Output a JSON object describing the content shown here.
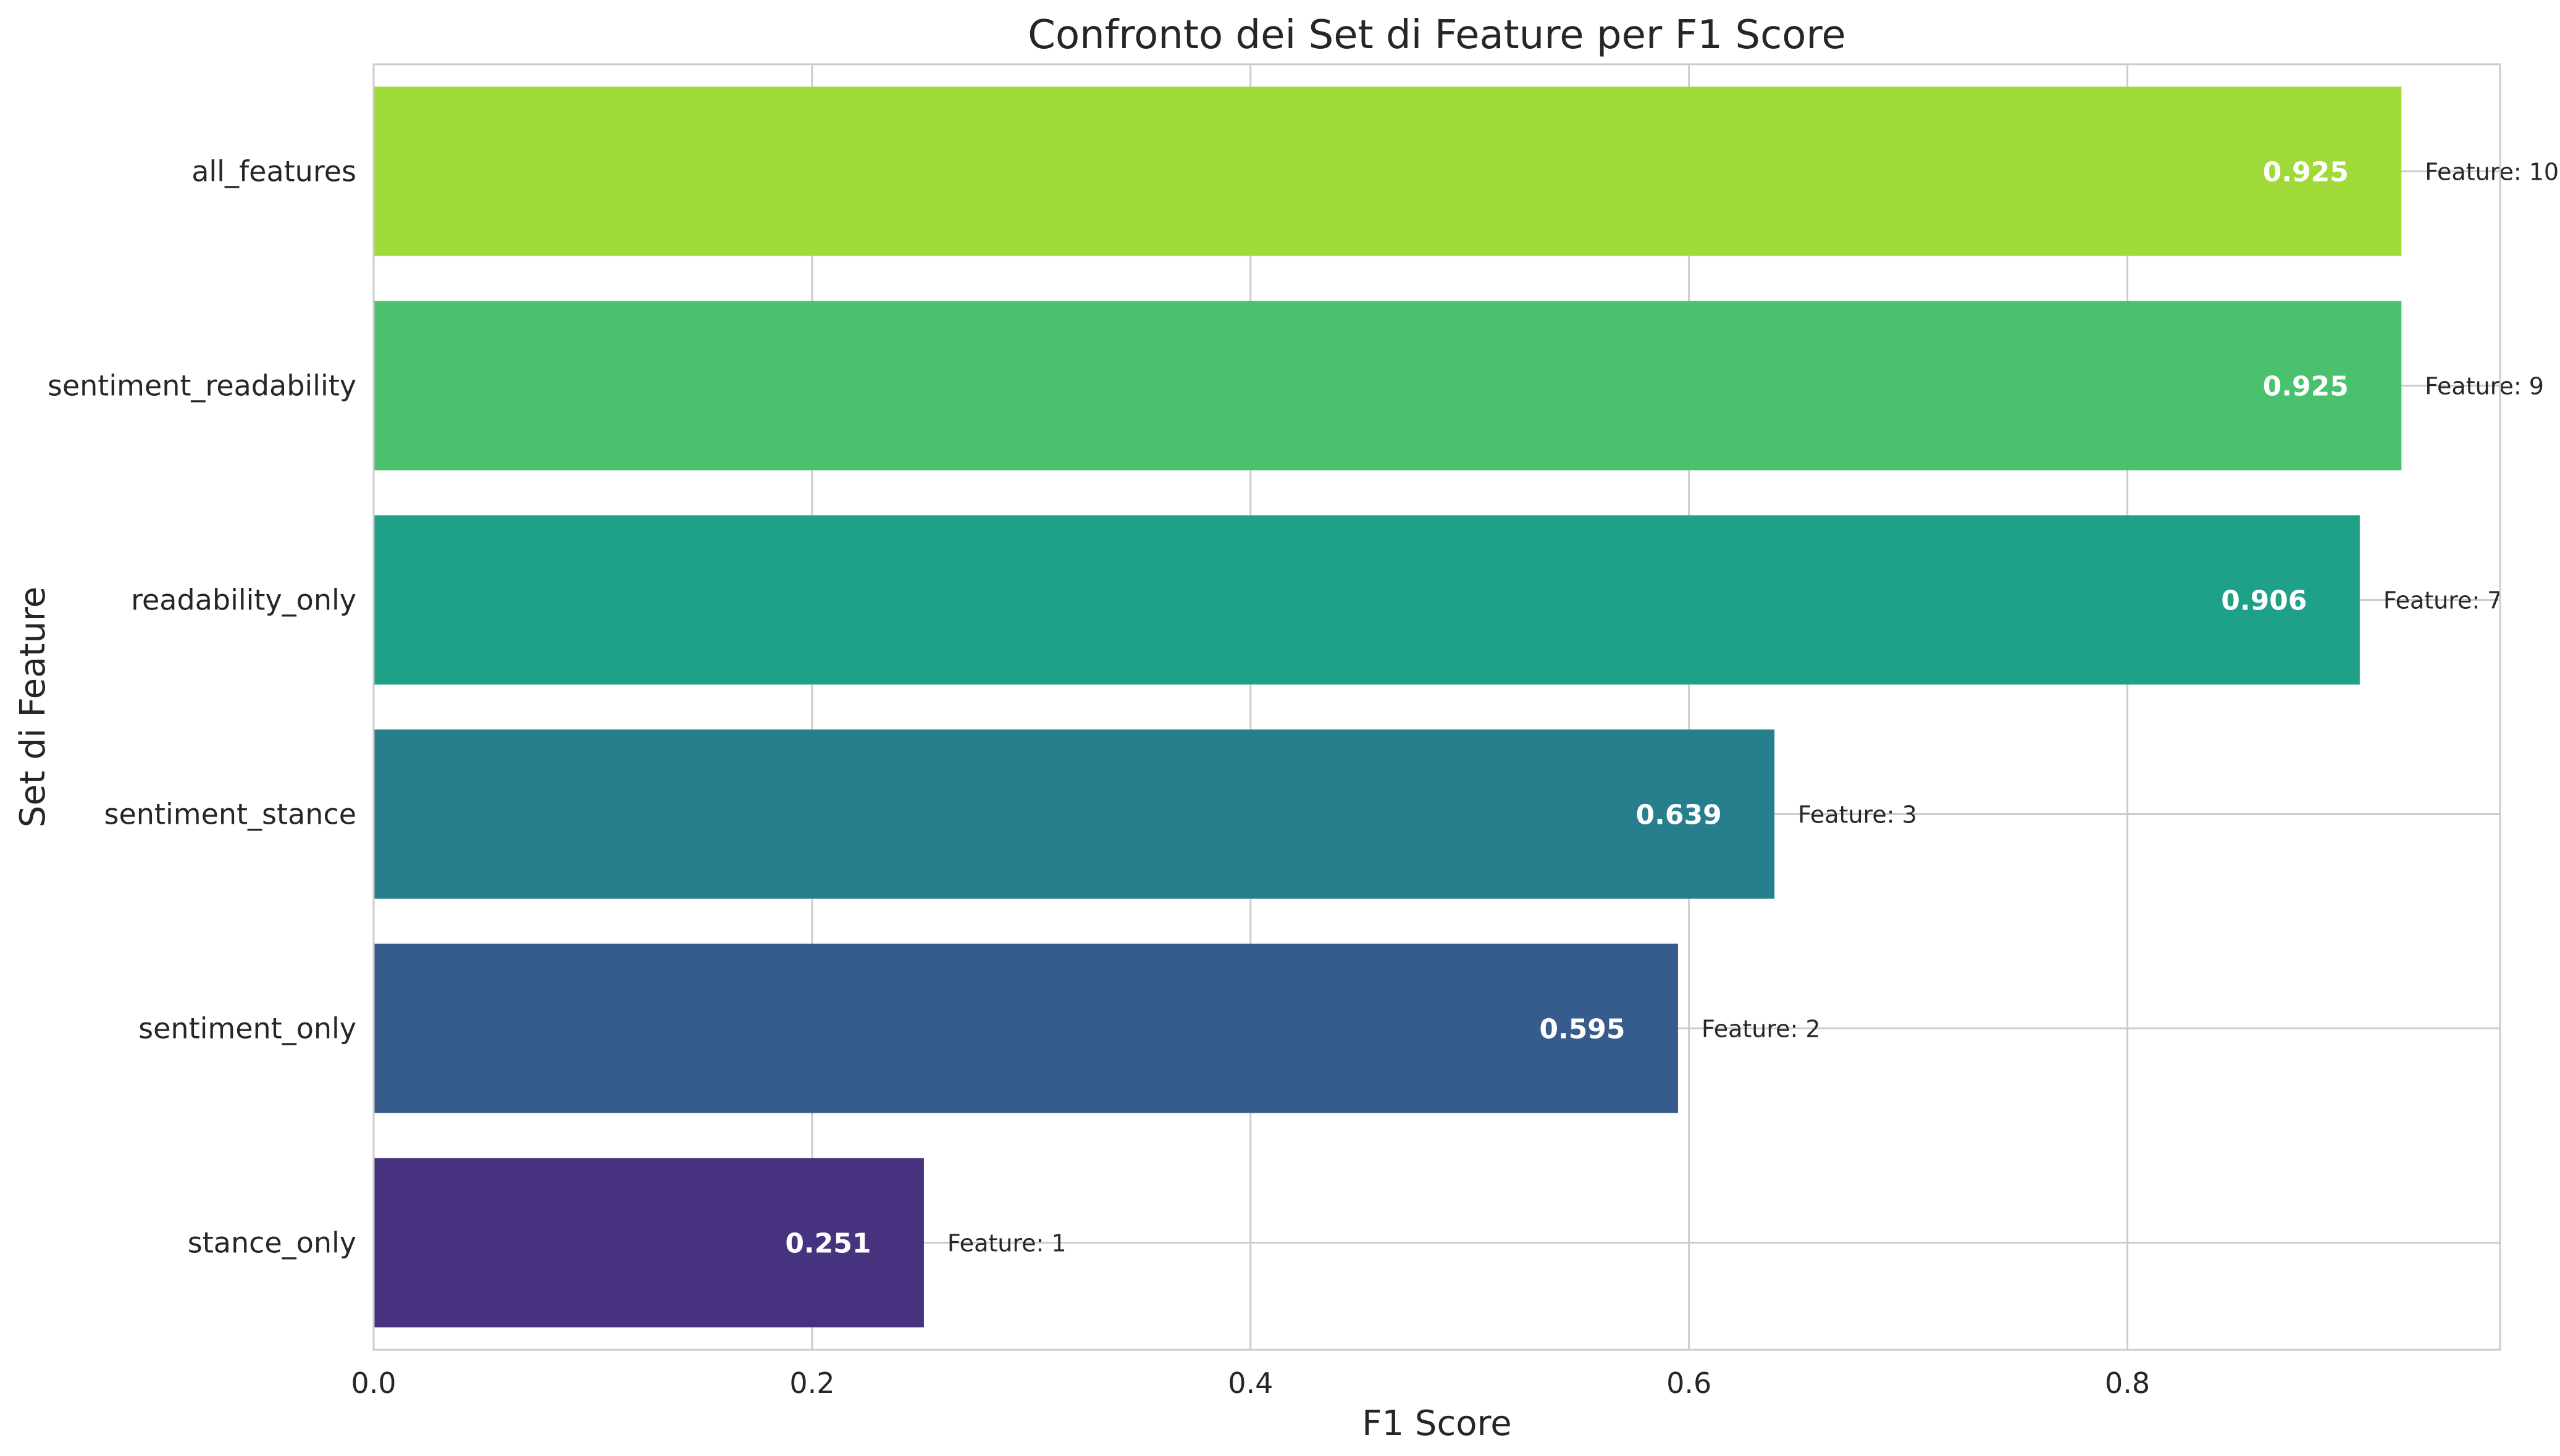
{
  "chart_data": {
    "type": "bar",
    "orientation": "horizontal",
    "title": "Confronto dei Set di Feature per F1 Score",
    "xlabel": "F1 Score",
    "ylabel": "Set di Feature",
    "xlim": [
      0,
      0.97
    ],
    "xticks": [
      "0.0",
      "0.2",
      "0.4",
      "0.6",
      "0.8"
    ],
    "grid": true,
    "categories": [
      "all_features",
      "sentiment_readability",
      "readability_only",
      "sentiment_stance",
      "sentiment_only",
      "stance_only"
    ],
    "values": [
      0.925,
      0.925,
      0.906,
      0.639,
      0.595,
      0.251
    ],
    "value_labels": [
      "0.925",
      "0.925",
      "0.906",
      "0.639",
      "0.595",
      "0.251"
    ],
    "annotations": [
      "Feature: 10",
      "Feature: 9",
      "Feature: 7",
      "Feature: 3",
      "Feature: 2",
      "Feature: 1"
    ],
    "colors": [
      "#a0da39",
      "#4ac16d",
      "#1fa187",
      "#277f8e",
      "#365c8d",
      "#46327e"
    ]
  }
}
